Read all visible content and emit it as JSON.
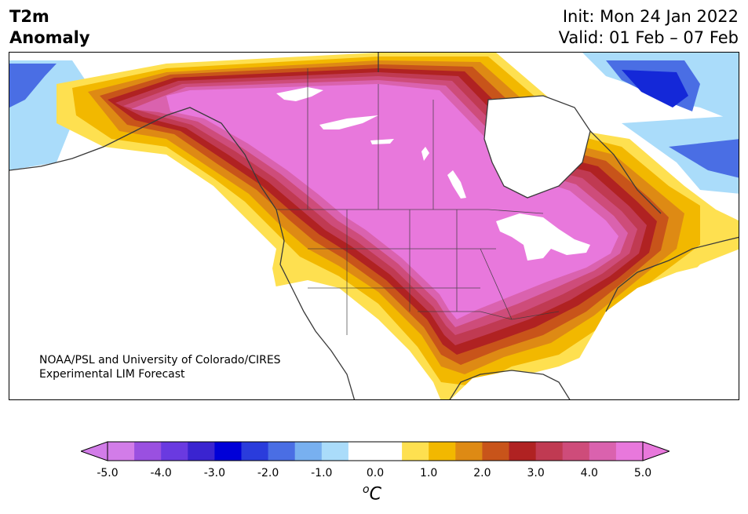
{
  "header": {
    "title_line1": "T2m",
    "title_line2": "Anomaly",
    "init": "Init: Mon 24 Jan 2022",
    "valid": "Valid: 01 Feb – 07 Feb"
  },
  "map": {
    "credit_line1": "NOAA/PSL and University of Colorado/CIRES",
    "credit_line2": "Experimental LIM Forecast",
    "colors": {
      "land_outline": "#3a3a3a",
      "max_anomaly": "#e878dc",
      "cold_core": "#1428d8"
    }
  },
  "colorbar": {
    "bins": [
      "#d27ce8",
      "#9a50e0",
      "#6a3ae0",
      "#3a24d0",
      "#0000d8",
      "#2a3cdc",
      "#4a6ee4",
      "#78b0f0",
      "#aadcfa",
      "#ffffff",
      "#ffffff",
      "#fee050",
      "#f2b800",
      "#de8a14",
      "#c8541a",
      "#b02222",
      "#c03a52",
      "#ce4c7a",
      "#da62ae",
      "#e878dc"
    ],
    "ticks": [
      "-5.0",
      "-4.0",
      "-3.0",
      "-2.0",
      "-1.0",
      "0.0",
      "1.0",
      "2.0",
      "3.0",
      "4.0",
      "5.0"
    ],
    "unit_base": "C",
    "unit_super": "o"
  }
}
